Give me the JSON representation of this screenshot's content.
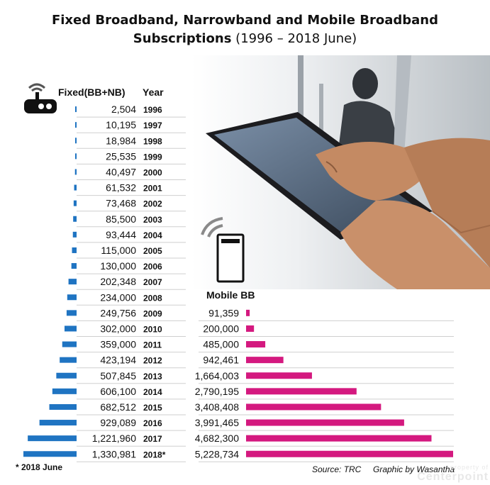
{
  "title": {
    "line1": "Fixed Broadband, Narrowband and Mobile Broadband",
    "line2_bold": "Subscriptions",
    "line2_light": " (1996 – 2018 June)"
  },
  "headers": {
    "fixed": "Fixed(BB+NB)",
    "year": "Year",
    "mobile": "Mobile BB"
  },
  "icons": {
    "fixed": "router-wifi-icon",
    "mobile": "mobile-phone-signal-icon"
  },
  "colors": {
    "fixed": "#1f74c2",
    "mobile": "#d4197f"
  },
  "footer": {
    "note": "*  2018 June",
    "source": "Source: TRC",
    "credit": "Graphic by Wasantha",
    "watermark_top": "property of",
    "watermark_main": "Centerpoint"
  },
  "chart_data": {
    "type": "bar",
    "categories": [
      "1996",
      "1997",
      "1998",
      "1999",
      "2000",
      "2001",
      "2002",
      "2003",
      "2004",
      "2005",
      "2006",
      "2007",
      "2008",
      "2009",
      "2010",
      "2011",
      "2012",
      "2013",
      "2014",
      "2015",
      "2016",
      "2017",
      "2018*"
    ],
    "series": [
      {
        "name": "Fixed(BB+NB)",
        "values": [
          2504,
          10195,
          18984,
          25535,
          40497,
          61532,
          73468,
          85500,
          93444,
          115000,
          130000,
          202348,
          234000,
          249756,
          302000,
          359000,
          423194,
          507845,
          606100,
          682512,
          929089,
          1221960,
          1330981
        ],
        "labels": [
          "2,504",
          "10,195",
          "18,984",
          "25,535",
          "40,497",
          "61,532",
          "73,468",
          "85,500",
          "93,444",
          "115,000",
          "130,000",
          "202,348",
          "234,000",
          "249,756",
          "302,000",
          "359,000",
          "423,194",
          "507,845",
          "606,100",
          "682,512",
          "929,089",
          "1,221,960",
          "1,330,981"
        ]
      },
      {
        "name": "Mobile BB",
        "values": [
          null,
          null,
          null,
          null,
          null,
          null,
          null,
          null,
          null,
          null,
          null,
          null,
          null,
          91359,
          200000,
          485000,
          942461,
          1664003,
          2790195,
          3408408,
          3991465,
          4682300,
          5228734
        ],
        "labels": [
          "",
          "",
          "",
          "",
          "",
          "",
          "",
          "",
          "",
          "",
          "",
          "",
          "",
          "91,359",
          "200,000",
          "485,000",
          "942,461",
          "1,664,003",
          "2,790,195",
          "3,408,408",
          "3,991,465",
          "4,682,300",
          "5,228,734"
        ]
      }
    ]
  }
}
